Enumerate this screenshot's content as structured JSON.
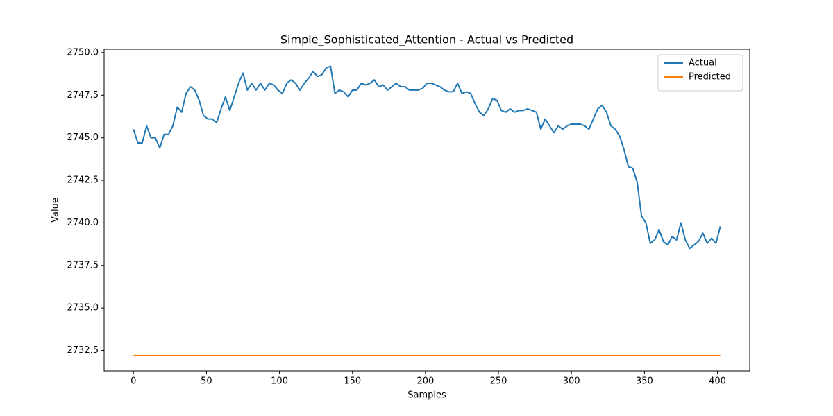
{
  "chart_data": {
    "type": "line",
    "title": "Simple_Sophisticated_Attention - Actual vs Predicted",
    "x_label": "Samples",
    "y_label": "Value",
    "x": [
      0,
      3,
      6,
      9,
      12,
      15,
      18,
      21,
      24,
      27,
      30,
      33,
      36,
      39,
      42,
      45,
      48,
      51,
      54,
      57,
      60,
      63,
      66,
      69,
      72,
      75,
      78,
      81,
      84,
      87,
      90,
      93,
      96,
      99,
      102,
      105,
      108,
      111,
      114,
      117,
      120,
      123,
      126,
      129,
      132,
      135,
      138,
      141,
      144,
      147,
      150,
      153,
      156,
      159,
      162,
      165,
      168,
      171,
      174,
      177,
      180,
      183,
      186,
      189,
      192,
      195,
      198,
      201,
      204,
      207,
      210,
      213,
      216,
      219,
      222,
      225,
      228,
      231,
      234,
      237,
      240,
      243,
      246,
      249,
      252,
      255,
      258,
      261,
      264,
      267,
      270,
      273,
      276,
      279,
      282,
      285,
      288,
      291,
      294,
      297,
      300,
      303,
      306,
      309,
      312,
      315,
      318,
      321,
      324,
      327,
      330,
      333,
      336,
      339,
      342,
      345,
      348,
      351,
      354,
      357,
      360,
      363,
      366,
      369,
      372,
      375,
      378,
      381,
      384,
      387,
      390,
      393,
      396,
      399,
      402
    ],
    "series": [
      {
        "name": "Actual",
        "color": "#1f77b4",
        "values": [
          2745.5,
          2744.7,
          2744.7,
          2745.7,
          2745.0,
          2745.0,
          2744.4,
          2745.2,
          2745.2,
          2745.7,
          2746.8,
          2746.5,
          2747.6,
          2748.0,
          2747.8,
          2747.2,
          2746.3,
          2746.1,
          2746.1,
          2745.9,
          2746.7,
          2747.4,
          2746.6,
          2747.4,
          2748.2,
          2748.8,
          2747.8,
          2748.2,
          2747.8,
          2748.2,
          2747.8,
          2748.2,
          2748.1,
          2747.8,
          2747.6,
          2748.2,
          2748.4,
          2748.2,
          2747.8,
          2748.2,
          2748.5,
          2748.9,
          2748.6,
          2748.7,
          2749.1,
          2749.2,
          2747.6,
          2747.8,
          2747.7,
          2747.4,
          2747.8,
          2747.8,
          2748.2,
          2748.1,
          2748.2,
          2748.4,
          2748.0,
          2748.1,
          2747.8,
          2748.0,
          2748.2,
          2748.0,
          2748.0,
          2747.8,
          2747.8,
          2747.8,
          2747.9,
          2748.2,
          2748.2,
          2748.1,
          2748.0,
          2747.8,
          2747.7,
          2747.7,
          2748.2,
          2747.6,
          2747.7,
          2747.6,
          2747.0,
          2746.5,
          2746.3,
          2746.7,
          2747.3,
          2747.2,
          2746.6,
          2746.5,
          2746.7,
          2746.5,
          2746.6,
          2746.6,
          2746.7,
          2746.6,
          2746.5,
          2745.5,
          2746.1,
          2745.7,
          2745.3,
          2745.7,
          2745.5,
          2745.7,
          2745.8,
          2745.8,
          2745.8,
          2745.7,
          2745.5,
          2746.1,
          2746.7,
          2746.9,
          2746.5,
          2745.7,
          2745.5,
          2745.1,
          2744.3,
          2743.3,
          2743.2,
          2742.4,
          2740.4,
          2740.0,
          2738.8,
          2739.0,
          2739.6,
          2738.9,
          2738.7,
          2739.2,
          2739.0,
          2740.0,
          2739.0,
          2738.5,
          2738.7,
          2738.9,
          2739.4,
          2738.8,
          2739.1,
          2738.8,
          2739.8
        ]
      },
      {
        "name": "Predicted",
        "color": "#ff7f0e",
        "values": [
          2732.2,
          2732.2,
          2732.2,
          2732.2,
          2732.2,
          2732.2,
          2732.2,
          2732.2,
          2732.2,
          2732.2,
          2732.2,
          2732.2,
          2732.2,
          2732.2,
          2732.2,
          2732.2,
          2732.2,
          2732.2,
          2732.2,
          2732.2,
          2732.2,
          2732.2,
          2732.2,
          2732.2,
          2732.2,
          2732.2,
          2732.2,
          2732.2,
          2732.2,
          2732.2,
          2732.2,
          2732.2,
          2732.2,
          2732.2,
          2732.2,
          2732.2,
          2732.2,
          2732.2,
          2732.2,
          2732.2,
          2732.2,
          2732.2,
          2732.2,
          2732.2,
          2732.2,
          2732.2,
          2732.2,
          2732.2,
          2732.2,
          2732.2,
          2732.2,
          2732.2,
          2732.2,
          2732.2,
          2732.2,
          2732.2,
          2732.2,
          2732.2,
          2732.2,
          2732.2,
          2732.2,
          2732.2,
          2732.2,
          2732.2,
          2732.2,
          2732.2,
          2732.2,
          2732.2,
          2732.2,
          2732.2,
          2732.2,
          2732.2,
          2732.2,
          2732.2,
          2732.2,
          2732.2,
          2732.2,
          2732.2,
          2732.2,
          2732.2,
          2732.2,
          2732.2,
          2732.2,
          2732.2,
          2732.2,
          2732.2,
          2732.2,
          2732.2,
          2732.2,
          2732.2,
          2732.2,
          2732.2,
          2732.2,
          2732.2,
          2732.2,
          2732.2,
          2732.2,
          2732.2,
          2732.2,
          2732.2,
          2732.2,
          2732.2,
          2732.2,
          2732.2,
          2732.2,
          2732.2,
          2732.2,
          2732.2,
          2732.2,
          2732.2,
          2732.2,
          2732.2,
          2732.2,
          2732.2,
          2732.2,
          2732.2,
          2732.2,
          2732.2,
          2732.2,
          2732.2,
          2732.2,
          2732.2,
          2732.2,
          2732.2,
          2732.2,
          2732.2,
          2732.2,
          2732.2,
          2732.2,
          2732.2,
          2732.2,
          2732.2,
          2732.2,
          2732.2,
          2732.2
        ]
      }
    ],
    "xlim": [
      -20.1,
      422.1
    ],
    "xticks": [
      0,
      50,
      100,
      150,
      200,
      250,
      300,
      350,
      400
    ],
    "ylim": [
      2731.3,
      2750.2
    ],
    "yticks": [
      2732.5,
      {
        "value": 2735,
        "label": "2735.0"
      },
      2737.5,
      {
        "value": 2740,
        "label": "2740.0"
      },
      2742.5,
      {
        "value": 2745,
        "label": "2745.0"
      },
      2747.5,
      {
        "value": 2750,
        "label": "2750.0"
      }
    ],
    "grid": false,
    "legend": "upper right"
  }
}
